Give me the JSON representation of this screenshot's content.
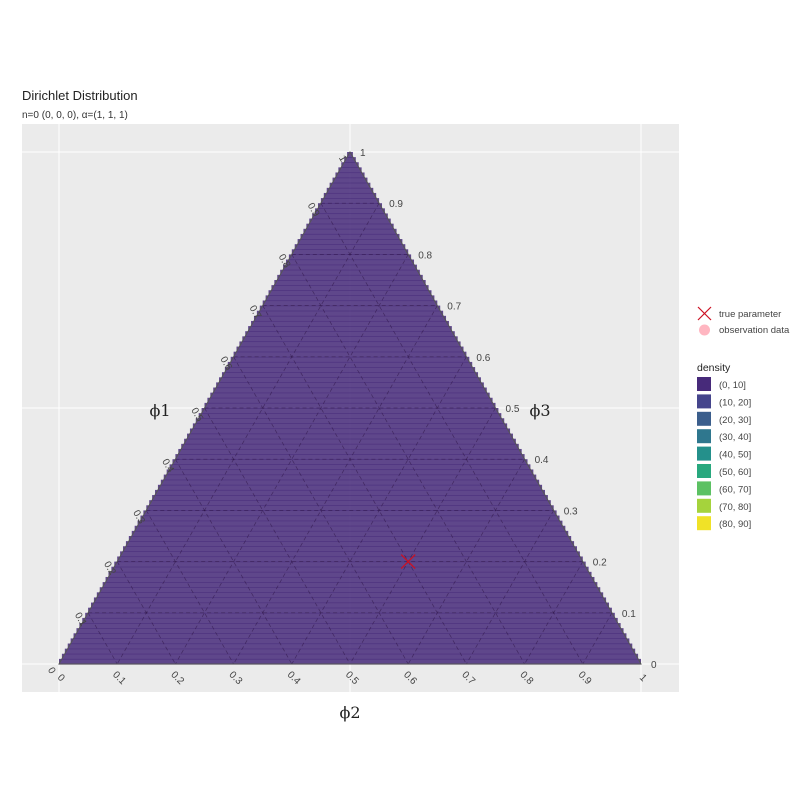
{
  "chart_data": {
    "type": "heatmap",
    "title": "Dirichlet Distribution",
    "subtitle": "n=0 (0, 0, 0), α=(1, 1, 1)",
    "axes": {
      "phi1": {
        "label": "ϕ1",
        "ticks": [
          "0",
          "0.1",
          "0.2",
          "0.3",
          "0.4",
          "0.5",
          "0.6",
          "0.7",
          "0.8",
          "0.9",
          "1"
        ]
      },
      "phi2": {
        "label": "ϕ2",
        "ticks": [
          "0",
          "0.1",
          "0.2",
          "0.3",
          "0.4",
          "0.5",
          "0.6",
          "0.7",
          "0.8",
          "0.9",
          "1"
        ]
      },
      "phi3": {
        "label": "ϕ3",
        "ticks": [
          "0",
          "0.1",
          "0.2",
          "0.3",
          "0.4",
          "0.5",
          "0.6",
          "0.7",
          "0.8",
          "0.9",
          "1"
        ]
      }
    },
    "density_constant": 2,
    "true_parameter": {
      "phi1": 0.2,
      "phi2": 0.5,
      "phi3": 0.3,
      "color": "#cc1122"
    },
    "legend": {
      "shape_items": [
        {
          "label": "true parameter",
          "symbol": "cross",
          "color": "#cc1122"
        },
        {
          "label": "observation data",
          "symbol": "dot",
          "color": "#ffb6c1"
        }
      ],
      "title": "density",
      "bins": [
        {
          "label": "(0, 10]",
          "color": "#472a7a"
        },
        {
          "label": "(10, 20]",
          "color": "#45458c"
        },
        {
          "label": "(20, 30]",
          "color": "#3b5e8c"
        },
        {
          "label": "(30, 40]",
          "color": "#2f778e"
        },
        {
          "label": "(40, 50]",
          "color": "#24908b"
        },
        {
          "label": "(50, 60]",
          "color": "#28a87e"
        },
        {
          "label": "(60, 70]",
          "color": "#5cc163"
        },
        {
          "label": "(70, 80]",
          "color": "#a5d33c"
        },
        {
          "label": "(80, 90]",
          "color": "#f0e227"
        }
      ]
    },
    "colors": {
      "panel": "#ebebeb",
      "fill": "#5e2d6d",
      "grid": "#ffffff"
    }
  }
}
